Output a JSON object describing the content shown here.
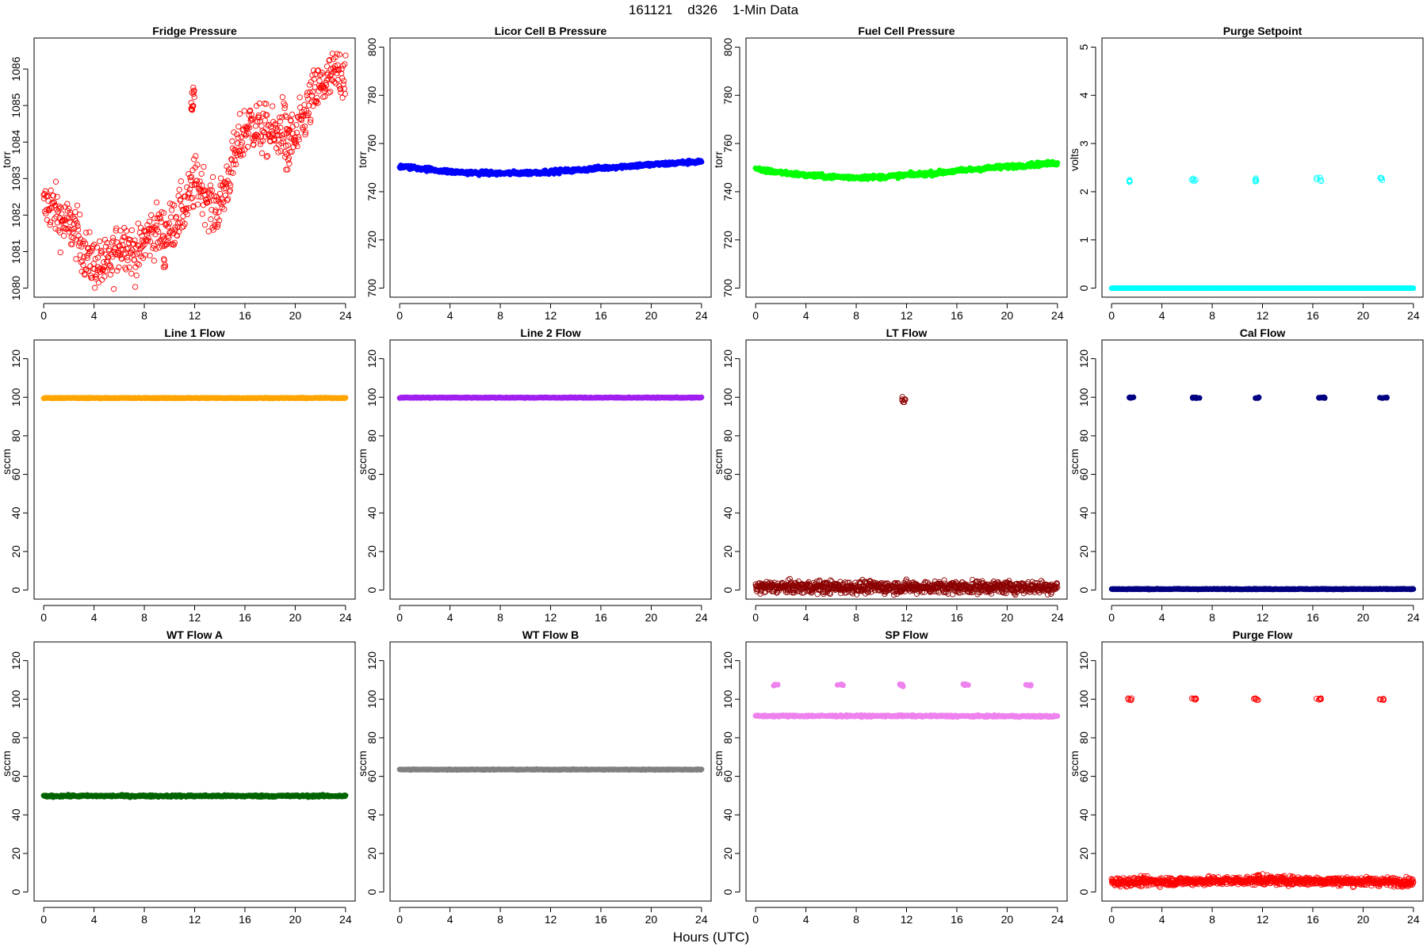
{
  "figure": {
    "suptitle": "161121    d326    1-Min Data",
    "xlabel": "Hours (UTC)"
  },
  "chart_data": [
    {
      "id": "fridge-pressure",
      "type": "scatter",
      "title": "Fridge Pressure",
      "ylabel": "torr",
      "xlim": [
        0,
        24
      ],
      "ylim": [
        1080,
        1086.6
      ],
      "xticks": [
        0,
        4,
        8,
        12,
        16,
        20,
        24
      ],
      "yticks": [
        1080,
        1081,
        1082,
        1083,
        1084,
        1085,
        1086
      ],
      "color": "#ff0000",
      "marker": "open",
      "trend": [
        [
          0,
          1082.2
        ],
        [
          0.5,
          1082.3
        ],
        [
          1,
          1082.1
        ],
        [
          1.5,
          1081.8
        ],
        [
          2,
          1081.7
        ],
        [
          2.5,
          1081.6
        ],
        [
          3,
          1081.2
        ],
        [
          3.5,
          1080.8
        ],
        [
          4,
          1080.7
        ],
        [
          4.5,
          1080.6
        ],
        [
          5,
          1080.6
        ],
        [
          5.5,
          1080.8
        ],
        [
          6,
          1081.2
        ],
        [
          6.5,
          1081.3
        ],
        [
          7,
          1081.0
        ],
        [
          7.5,
          1080.9
        ],
        [
          8,
          1081.3
        ],
        [
          8.5,
          1081.5
        ],
        [
          9,
          1081.6
        ],
        [
          9.5,
          1081.5
        ],
        [
          10,
          1081.6
        ],
        [
          10.5,
          1081.9
        ],
        [
          11,
          1082.1
        ],
        [
          11.5,
          1082.4
        ],
        [
          12,
          1082.9
        ],
        [
          12.5,
          1082.8
        ],
        [
          13,
          1082.5
        ],
        [
          13.5,
          1082.1
        ],
        [
          14,
          1082.3
        ],
        [
          14.5,
          1082.8
        ],
        [
          15,
          1083.4
        ],
        [
          15.5,
          1083.9
        ],
        [
          16,
          1084.3
        ],
        [
          16.5,
          1084.5
        ],
        [
          17,
          1084.4
        ],
        [
          17.5,
          1084.3
        ],
        [
          18,
          1084.3
        ],
        [
          18.5,
          1084.1
        ],
        [
          19,
          1084.5
        ],
        [
          19.5,
          1084.2
        ],
        [
          20,
          1084.0
        ],
        [
          20.5,
          1084.5
        ],
        [
          21,
          1084.9
        ],
        [
          21.5,
          1085.3
        ],
        [
          22,
          1085.5
        ],
        [
          22.5,
          1085.6
        ],
        [
          23,
          1085.8
        ],
        [
          23.5,
          1085.9
        ],
        [
          24,
          1085.9
        ]
      ],
      "noise": 0.35,
      "n": 720,
      "bursts": [
        {
          "x": [
            11.7,
            12.0
          ],
          "y": [
            1084.5,
            1085.5
          ],
          "n": 14
        },
        {
          "x": [
            9.5,
            9.8
          ],
          "y": [
            1080.1,
            1080.8
          ],
          "n": 4
        },
        {
          "x": [
            19.1,
            19.6
          ],
          "y": [
            1083.2,
            1083.8
          ],
          "n": 8
        }
      ]
    },
    {
      "id": "licor-cell-b-pressure",
      "type": "scatter",
      "title": "Licor Cell B Pressure",
      "ylabel": "torr",
      "xlim": [
        0,
        24
      ],
      "ylim": [
        700,
        800
      ],
      "xticks": [
        0,
        4,
        8,
        12,
        16,
        20,
        24
      ],
      "yticks": [
        700,
        720,
        740,
        760,
        780,
        800
      ],
      "color": "#0000ff",
      "marker": "filled",
      "trend": [
        [
          0,
          750.5
        ],
        [
          2,
          749.5
        ],
        [
          4,
          748.3
        ],
        [
          6,
          747.8
        ],
        [
          8,
          747.6
        ],
        [
          10,
          747.8
        ],
        [
          12,
          748.3
        ],
        [
          14,
          748.9
        ],
        [
          16,
          749.8
        ],
        [
          18,
          750.6
        ],
        [
          20,
          751.2
        ],
        [
          22,
          751.9
        ],
        [
          24,
          752.6
        ]
      ],
      "noise": 0.4,
      "n": 480,
      "bursts": []
    },
    {
      "id": "fuel-cell-pressure",
      "type": "scatter",
      "title": "Fuel Cell Pressure",
      "ylabel": "torr",
      "xlim": [
        0,
        24
      ],
      "ylim": [
        700,
        800
      ],
      "xticks": [
        0,
        4,
        8,
        12,
        16,
        20,
        24
      ],
      "yticks": [
        700,
        720,
        740,
        760,
        780,
        800
      ],
      "color": "#00ff00",
      "marker": "filled",
      "trend": [
        [
          0,
          749.2
        ],
        [
          2,
          748.0
        ],
        [
          4,
          746.8
        ],
        [
          6,
          746.2
        ],
        [
          8,
          745.9
        ],
        [
          10,
          746.1
        ],
        [
          12,
          746.9
        ],
        [
          14,
          747.6
        ],
        [
          16,
          748.6
        ],
        [
          18,
          749.6
        ],
        [
          20,
          750.4
        ],
        [
          22,
          751.2
        ],
        [
          24,
          751.9
        ]
      ],
      "noise": 0.4,
      "n": 480,
      "bursts": []
    },
    {
      "id": "purge-setpoint",
      "type": "scatter",
      "title": "Purge Setpoint",
      "ylabel": "volts",
      "xlim": [
        0,
        24
      ],
      "ylim": [
        0,
        5
      ],
      "xticks": [
        0,
        4,
        8,
        12,
        16,
        20,
        24
      ],
      "yticks": [
        0,
        1,
        2,
        3,
        4,
        5
      ],
      "color": "#00ffff",
      "marker": "filled",
      "trend": [
        [
          0,
          0
        ],
        [
          24,
          0
        ]
      ],
      "noise": 0.0,
      "n": 480,
      "bursts": [
        {
          "x": [
            1.3,
            1.6
          ],
          "y": [
            2.2,
            2.3
          ],
          "n": 5,
          "open": true
        },
        {
          "x": [
            6.3,
            6.7
          ],
          "y": [
            2.2,
            2.3
          ],
          "n": 5,
          "open": true
        },
        {
          "x": [
            11.3,
            11.6
          ],
          "y": [
            2.2,
            2.3
          ],
          "n": 5,
          "open": true
        },
        {
          "x": [
            16.3,
            16.7
          ],
          "y": [
            2.2,
            2.3
          ],
          "n": 5,
          "open": true
        },
        {
          "x": [
            21.3,
            21.6
          ],
          "y": [
            2.2,
            2.3
          ],
          "n": 5,
          "open": true
        }
      ]
    },
    {
      "id": "line-1-flow",
      "type": "scatter",
      "title": "Line 1 Flow",
      "ylabel": "sccm",
      "xlim": [
        0,
        24
      ],
      "ylim": [
        0,
        125
      ],
      "xticks": [
        0,
        4,
        8,
        12,
        16,
        20,
        24
      ],
      "yticks": [
        0,
        20,
        40,
        60,
        80,
        100,
        120
      ],
      "color": "#ffa500",
      "marker": "filled",
      "trend": [
        [
          0,
          99.6
        ],
        [
          24,
          99.6
        ]
      ],
      "noise": 0.1,
      "n": 480,
      "bursts": []
    },
    {
      "id": "line-2-flow",
      "type": "scatter",
      "title": "Line 2 Flow",
      "ylabel": "sccm",
      "xlim": [
        0,
        24
      ],
      "ylim": [
        0,
        125
      ],
      "xticks": [
        0,
        4,
        8,
        12,
        16,
        20,
        24
      ],
      "yticks": [
        0,
        20,
        40,
        60,
        80,
        100,
        120
      ],
      "color": "#a020f0",
      "marker": "filled",
      "trend": [
        [
          0,
          99.8
        ],
        [
          24,
          99.8
        ]
      ],
      "noise": 0.1,
      "n": 480,
      "bursts": []
    },
    {
      "id": "lt-flow",
      "type": "scatter",
      "title": "LT Flow",
      "ylabel": "sccm",
      "xlim": [
        0,
        24
      ],
      "ylim": [
        0,
        125
      ],
      "xticks": [
        0,
        4,
        8,
        12,
        16,
        20,
        24
      ],
      "yticks": [
        0,
        20,
        40,
        60,
        80,
        100,
        120
      ],
      "color": "#8b0000",
      "marker": "open",
      "trend": [
        [
          0,
          1.5
        ],
        [
          24,
          1.5
        ]
      ],
      "noise": 1.6,
      "n": 900,
      "bursts": [
        {
          "x": [
            11.6,
            12.0
          ],
          "y": [
            97,
            101
          ],
          "n": 8
        }
      ]
    },
    {
      "id": "cal-flow",
      "type": "scatter",
      "title": "Cal Flow",
      "ylabel": "sccm",
      "xlim": [
        0,
        24
      ],
      "ylim": [
        0,
        125
      ],
      "xticks": [
        0,
        4,
        8,
        12,
        16,
        20,
        24
      ],
      "yticks": [
        0,
        20,
        40,
        60,
        80,
        100,
        120
      ],
      "color": "#000080",
      "marker": "filled",
      "trend": [
        [
          0,
          0.5
        ],
        [
          24,
          0.5
        ]
      ],
      "noise": 0.1,
      "n": 480,
      "bursts": [
        {
          "x": [
            1.3,
            1.8
          ],
          "y": [
            99.5,
            100
          ],
          "n": 8
        },
        {
          "x": [
            6.3,
            7.0
          ],
          "y": [
            99.5,
            100
          ],
          "n": 10
        },
        {
          "x": [
            11.3,
            11.8
          ],
          "y": [
            99.5,
            100
          ],
          "n": 8
        },
        {
          "x": [
            16.3,
            17.0
          ],
          "y": [
            99.5,
            100
          ],
          "n": 10
        },
        {
          "x": [
            21.3,
            21.9
          ],
          "y": [
            99.5,
            100
          ],
          "n": 8
        }
      ]
    },
    {
      "id": "wt-flow-a",
      "type": "scatter",
      "title": "WT Flow A",
      "ylabel": "sccm",
      "xlim": [
        0,
        24
      ],
      "ylim": [
        0,
        125
      ],
      "xticks": [
        0,
        4,
        8,
        12,
        16,
        20,
        24
      ],
      "yticks": [
        0,
        20,
        40,
        60,
        80,
        100,
        120
      ],
      "color": "#006400",
      "marker": "filled",
      "trend": [
        [
          0,
          49.8
        ],
        [
          24,
          49.8
        ]
      ],
      "noise": 0.25,
      "n": 480,
      "bursts": []
    },
    {
      "id": "wt-flow-b",
      "type": "scatter",
      "title": "WT Flow B",
      "ylabel": "sccm",
      "xlim": [
        0,
        24
      ],
      "ylim": [
        0,
        125
      ],
      "xticks": [
        0,
        4,
        8,
        12,
        16,
        20,
        24
      ],
      "yticks": [
        0,
        20,
        40,
        60,
        80,
        100,
        120
      ],
      "color": "#808080",
      "marker": "filled",
      "trend": [
        [
          0,
          63.5
        ],
        [
          24,
          63.5
        ]
      ],
      "noise": 0.1,
      "n": 480,
      "bursts": []
    },
    {
      "id": "sp-flow",
      "type": "scatter",
      "title": "SP Flow",
      "ylabel": "sccm",
      "xlim": [
        0,
        24
      ],
      "ylim": [
        0,
        125
      ],
      "xticks": [
        0,
        4,
        8,
        12,
        16,
        20,
        24
      ],
      "yticks": [
        0,
        20,
        40,
        60,
        80,
        100,
        120
      ],
      "color": "#ee82ee",
      "marker": "filled",
      "trend": [
        [
          0,
          91.3
        ],
        [
          12,
          91.3
        ],
        [
          24,
          91.1
        ]
      ],
      "noise": 0.2,
      "n": 480,
      "bursts": [
        {
          "x": [
            1.4,
            1.8
          ],
          "y": [
            107,
            107.8
          ],
          "n": 6
        },
        {
          "x": [
            6.5,
            7.0
          ],
          "y": [
            107,
            107.8
          ],
          "n": 6
        },
        {
          "x": [
            11.4,
            11.9
          ],
          "y": [
            106.5,
            107.8
          ],
          "n": 6
        },
        {
          "x": [
            16.5,
            17.0
          ],
          "y": [
            107,
            107.8
          ],
          "n": 6
        },
        {
          "x": [
            21.5,
            21.9
          ],
          "y": [
            107,
            107.8
          ],
          "n": 6
        }
      ]
    },
    {
      "id": "purge-flow",
      "type": "scatter",
      "title": "Purge Flow",
      "ylabel": "sccm",
      "xlim": [
        0,
        24
      ],
      "ylim": [
        0,
        125
      ],
      "xticks": [
        0,
        4,
        8,
        12,
        16,
        20,
        24
      ],
      "yticks": [
        0,
        20,
        40,
        60,
        80,
        100,
        120
      ],
      "color": "#ff0000",
      "marker": "open",
      "trend": [
        [
          0,
          5.2
        ],
        [
          12,
          6.0
        ],
        [
          24,
          5.2
        ]
      ],
      "noise": 1.1,
      "n": 900,
      "bursts": [
        {
          "x": [
            1.3,
            1.6
          ],
          "y": [
            99.5,
            100.5
          ],
          "n": 6
        },
        {
          "x": [
            6.3,
            6.8
          ],
          "y": [
            99.5,
            100.5
          ],
          "n": 6
        },
        {
          "x": [
            11.3,
            11.7
          ],
          "y": [
            99.5,
            100.5
          ],
          "n": 6
        },
        {
          "x": [
            16.3,
            16.8
          ],
          "y": [
            99.5,
            100.5
          ],
          "n": 6
        },
        {
          "x": [
            21.3,
            21.7
          ],
          "y": [
            99.5,
            100.5
          ],
          "n": 6
        },
        {
          "x": [
            11.6,
            12.2
          ],
          "y": [
            7.5,
            10
          ],
          "n": 6
        }
      ]
    }
  ]
}
